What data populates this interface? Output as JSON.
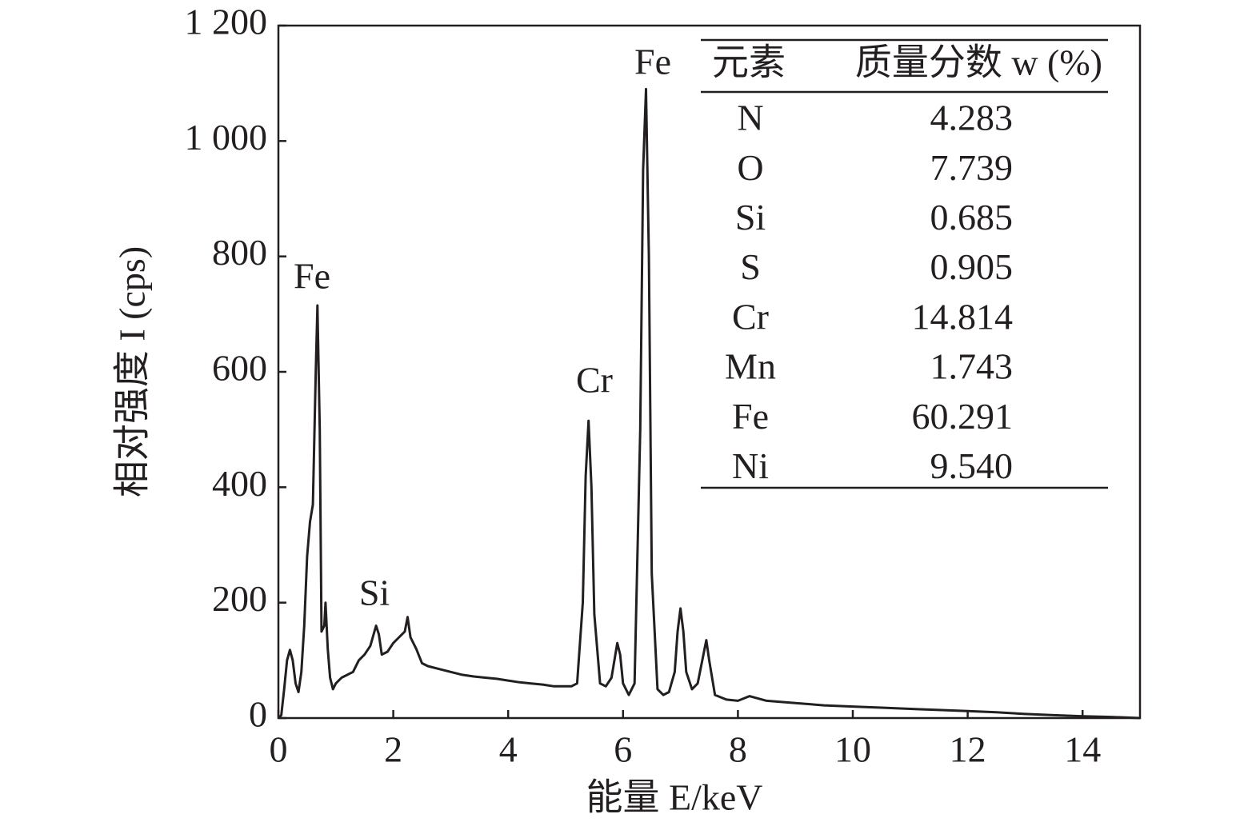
{
  "chart_data": {
    "type": "line",
    "xlabel": "能量 E/keV",
    "ylabel": "相对强度 I (cps)",
    "color": "#231f20",
    "xlim": [
      0,
      15
    ],
    "ylim": [
      0,
      1200
    ],
    "xticks": [
      0,
      2,
      4,
      6,
      8,
      10,
      12,
      14
    ],
    "yticks": [
      0,
      200,
      400,
      600,
      800,
      {
        "value": 1000,
        "label": "1 000"
      },
      {
        "value": 1200,
        "label": "1 200"
      }
    ],
    "x": [
      0,
      0.05,
      0.1,
      0.15,
      0.2,
      0.25,
      0.3,
      0.35,
      0.4,
      0.45,
      0.5,
      0.55,
      0.6,
      0.65,
      0.68,
      0.72,
      0.75,
      0.8,
      0.82,
      0.86,
      0.9,
      0.95,
      1.0,
      1.1,
      1.2,
      1.3,
      1.4,
      1.5,
      1.6,
      1.7,
      1.75,
      1.8,
      1.9,
      2.0,
      2.1,
      2.2,
      2.25,
      2.3,
      2.4,
      2.5,
      2.6,
      2.8,
      3.0,
      3.2,
      3.4,
      3.6,
      3.8,
      4.0,
      4.2,
      4.4,
      4.6,
      4.8,
      5.0,
      5.1,
      5.2,
      5.3,
      5.35,
      5.4,
      5.45,
      5.5,
      5.6,
      5.7,
      5.8,
      5.9,
      5.95,
      6.0,
      6.1,
      6.2,
      6.3,
      6.35,
      6.4,
      6.45,
      6.5,
      6.6,
      6.7,
      6.8,
      6.9,
      6.95,
      7.0,
      7.05,
      7.1,
      7.2,
      7.3,
      7.4,
      7.45,
      7.5,
      7.6,
      7.8,
      8.0,
      8.2,
      8.5,
      9.0,
      9.5,
      10.0,
      10.5,
      11.0,
      11.5,
      12.0,
      12.5,
      13.0,
      13.5,
      14.0,
      14.5,
      15.0
    ],
    "values": [
      0,
      5,
      50,
      100,
      118,
      100,
      60,
      45,
      80,
      160,
      280,
      340,
      370,
      600,
      715,
      500,
      150,
      160,
      200,
      120,
      70,
      50,
      60,
      70,
      75,
      80,
      100,
      110,
      125,
      160,
      145,
      110,
      115,
      130,
      140,
      150,
      175,
      140,
      120,
      95,
      90,
      85,
      80,
      75,
      72,
      70,
      68,
      65,
      62,
      60,
      58,
      55,
      55,
      55,
      60,
      200,
      420,
      515,
      400,
      180,
      60,
      55,
      70,
      130,
      110,
      60,
      40,
      60,
      500,
      950,
      1090,
      800,
      250,
      50,
      40,
      45,
      80,
      150,
      190,
      150,
      80,
      50,
      60,
      110,
      135,
      100,
      40,
      32,
      30,
      38,
      30,
      26,
      22,
      20,
      18,
      16,
      14,
      12,
      10,
      7,
      5,
      3,
      2,
      0
    ],
    "annotations": [
      "Fe",
      "Si",
      "Cr",
      "Fe"
    ],
    "table": {
      "header": [
        "元素",
        "质量分数 w (%)"
      ],
      "rows": [
        [
          "N",
          "4.283"
        ],
        [
          "O",
          "7.739"
        ],
        [
          "Si",
          "0.685"
        ],
        [
          "S",
          "0.905"
        ],
        [
          "Cr",
          "14.814"
        ],
        [
          "Mn",
          "1.743"
        ],
        [
          "Fe",
          "60.291"
        ],
        [
          "Ni",
          "9.540"
        ]
      ]
    }
  }
}
